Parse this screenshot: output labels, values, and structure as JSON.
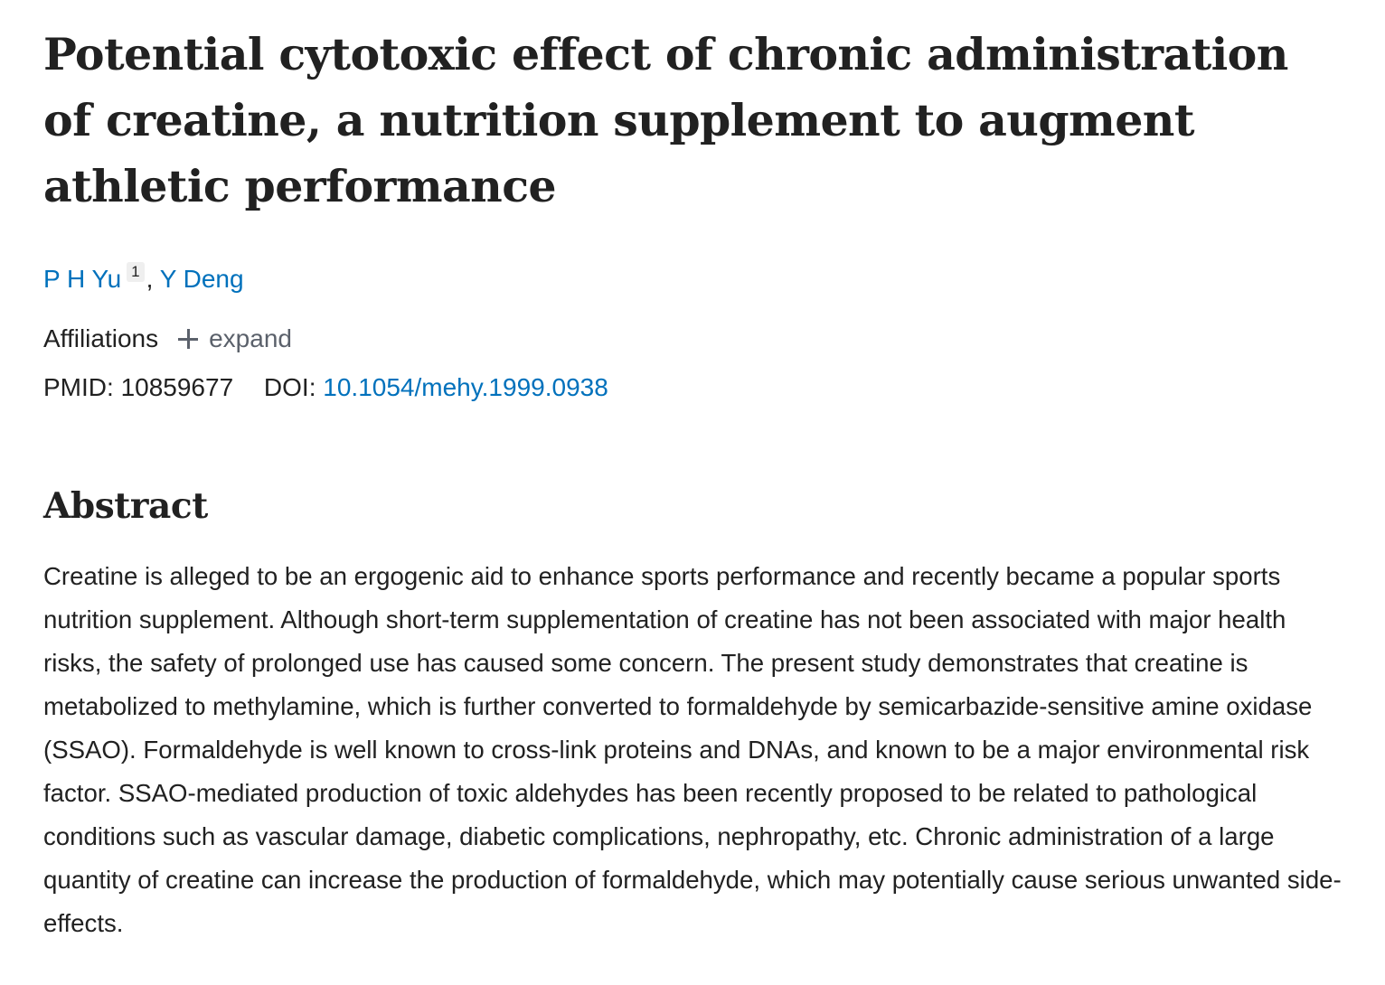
{
  "article": {
    "title": "Potential cytotoxic effect of chronic administration of creatine, a nutrition supplement to augment athletic performance",
    "authors": [
      {
        "name": "P H Yu",
        "affiliation_ref": "1"
      },
      {
        "name": "Y Deng"
      }
    ],
    "author_separator": ", ",
    "affiliations_label": "Affiliations",
    "expand_label": "expand",
    "pmid_label": "PMID:",
    "pmid": "10859677",
    "doi_label": "DOI:",
    "doi": "10.1054/mehy.1999.0938"
  },
  "abstract": {
    "heading": "Abstract",
    "text": "Creatine is alleged to be an ergogenic aid to enhance sports performance and recently became a popular sports nutrition supplement. Although short-term supplementation of creatine has not been associated with major health risks, the safety of prolonged use has caused some concern. The present study demonstrates that creatine is metabolized to methylamine, which is further converted to formaldehyde by semicarbazide-sensitive amine oxidase (SSAO). Formaldehyde is well known to cross-link proteins and DNAs, and known to be a major environmental risk factor. SSAO-mediated production of toxic aldehydes has been recently proposed to be related to pathological conditions such as vascular damage, diabetic complications, nephropathy, etc. Chronic administration of a large quantity of creatine can increase the production of formaldehyde, which may potentially cause serious unwanted side-effects."
  },
  "colors": {
    "link": "#0071bc",
    "text": "#212121",
    "muted": "#5b616b"
  },
  "icons": {
    "expand": "plus-icon"
  }
}
